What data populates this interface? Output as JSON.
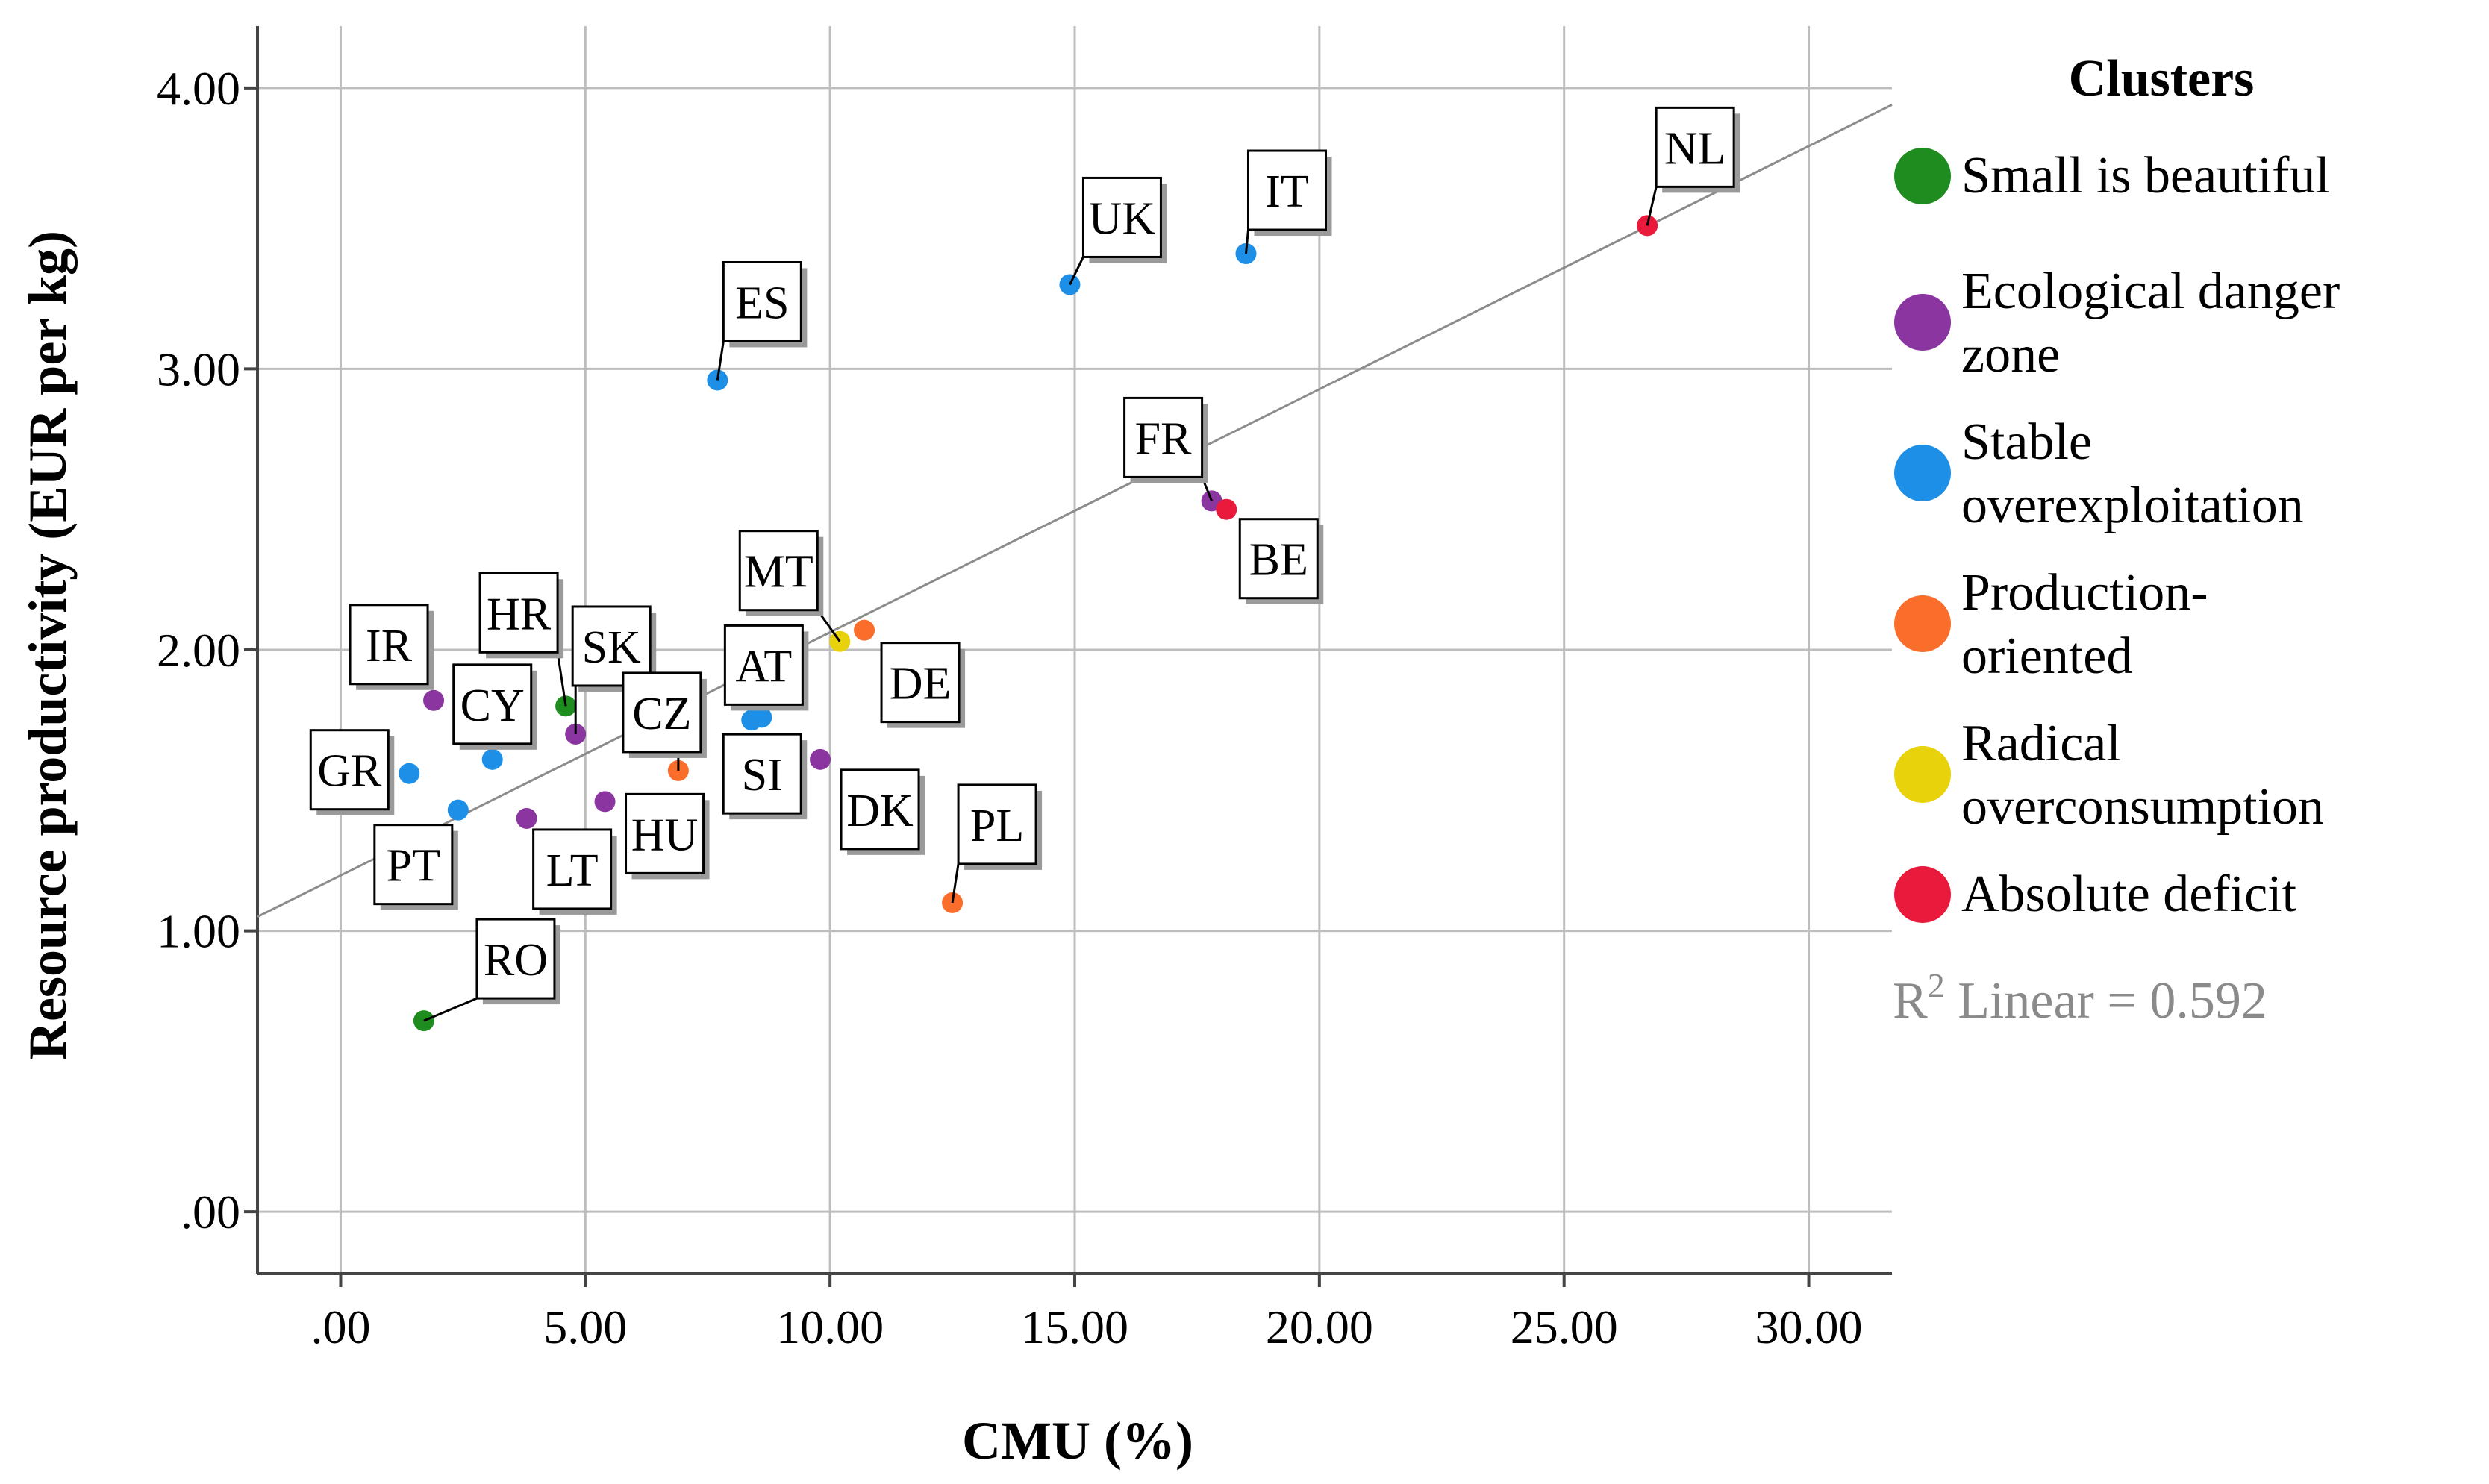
{
  "chart_data": {
    "type": "scatter",
    "xlabel": "CMU (%)",
    "ylabel": "Resource productivity (EUR per kg)",
    "xlim": [
      -1.7,
      31.7
    ],
    "ylim": [
      -0.22,
      4.22
    ],
    "x_ticks": [
      ".00",
      "5.00",
      "10.00",
      "15.00",
      "20.00",
      "25.00",
      "30.00"
    ],
    "x_tick_values": [
      0,
      5,
      10,
      15,
      20,
      25,
      30
    ],
    "y_ticks": [
      ".00",
      "1.00",
      "2.00",
      "3.00",
      "4.00"
    ],
    "y_tick_values": [
      0,
      1,
      2,
      3,
      4
    ],
    "grid": true,
    "legend": {
      "title": "Clusters",
      "placement": "right",
      "entries": [
        {
          "lines": [
            "Small is beautiful"
          ],
          "color": "#1e8c1e"
        },
        {
          "lines": [
            "Ecological danger",
            "zone"
          ],
          "color": "#8a35a0"
        },
        {
          "lines": [
            "Stable",
            "overexploitation"
          ],
          "color": "#1d8fe6"
        },
        {
          "lines": [
            "Production-",
            "oriented"
          ],
          "color": "#fa6d2a"
        },
        {
          "lines": [
            "Radical",
            "overconsumption"
          ],
          "color": "#e8d20c"
        },
        {
          "lines": [
            "Absolute deficit"
          ],
          "color": "#ea1a3c"
        }
      ],
      "fit_label_prefix": "R",
      "fit_label_sup": "2",
      "fit_label_suffix": " Linear = 0.592"
    },
    "fit_line": {
      "x_range": [
        -1.7,
        31.7
      ],
      "y_range": [
        1.05,
        3.94
      ],
      "r2": 0.592
    },
    "points": [
      {
        "label": "NL",
        "x": 26.7,
        "y": 3.51,
        "cluster": 5
      },
      {
        "label": "IT",
        "x": 18.5,
        "y": 3.41,
        "cluster": 2
      },
      {
        "label": "UK",
        "x": 14.9,
        "y": 3.3,
        "cluster": 2
      },
      {
        "label": "ES",
        "x": 7.7,
        "y": 2.96,
        "cluster": 2
      },
      {
        "label": "FR",
        "x": 17.8,
        "y": 2.53,
        "cluster": 1
      },
      {
        "label": "BE",
        "x": 18.1,
        "y": 2.5,
        "cluster": 5
      },
      {
        "label": "DE",
        "x": 10.7,
        "y": 2.07,
        "cluster": 3
      },
      {
        "label": "MT",
        "x": 10.2,
        "y": 2.03,
        "cluster": 4
      },
      {
        "label": "IR",
        "x": 1.9,
        "y": 1.82,
        "cluster": 1
      },
      {
        "label": "HR",
        "x": 4.6,
        "y": 1.8,
        "cluster": 0
      },
      {
        "label": "AT",
        "x": 8.6,
        "y": 1.76,
        "cluster": 2
      },
      {
        "label": "SI",
        "x": 8.4,
        "y": 1.75,
        "cluster": 2
      },
      {
        "label": "SK",
        "x": 4.8,
        "y": 1.7,
        "cluster": 1
      },
      {
        "label": "DK",
        "x": 9.8,
        "y": 1.61,
        "cluster": 1
      },
      {
        "label": "CY",
        "x": 3.1,
        "y": 1.61,
        "cluster": 2
      },
      {
        "label": "CZ",
        "x": 6.9,
        "y": 1.57,
        "cluster": 3
      },
      {
        "label": "GR",
        "x": 1.4,
        "y": 1.56,
        "cluster": 2
      },
      {
        "label": "HU",
        "x": 5.4,
        "y": 1.46,
        "cluster": 1
      },
      {
        "label": "PT",
        "x": 2.4,
        "y": 1.43,
        "cluster": 2
      },
      {
        "label": "LT",
        "x": 3.8,
        "y": 1.4,
        "cluster": 1
      },
      {
        "label": "PL",
        "x": 12.5,
        "y": 1.1,
        "cluster": 3
      },
      {
        "label": "RO",
        "x": 1.7,
        "y": 0.68,
        "cluster": 0
      }
    ]
  }
}
